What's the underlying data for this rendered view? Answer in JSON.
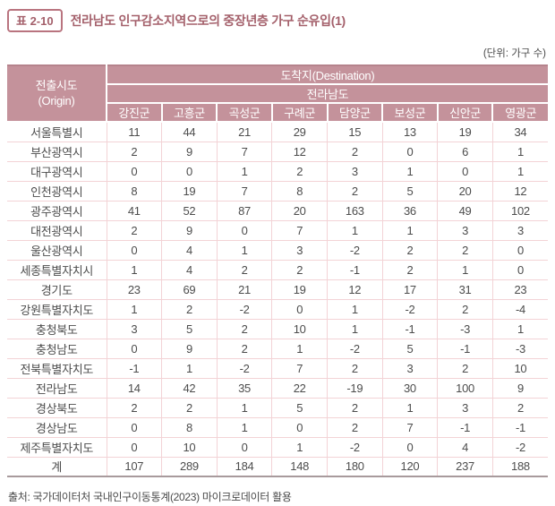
{
  "title": {
    "badge": "표 2-10",
    "text": "전라남도 인구감소지역으로의 중장년층 가구 순유입(1)"
  },
  "unit_label": "(단위: 가구 수)",
  "table": {
    "origin_header_line1": "전출시도",
    "origin_header_line2": "(Origin)",
    "destination_header": "도착지(Destination)",
    "region_header": "전라남도",
    "columns": [
      "강진군",
      "고흥군",
      "곡성군",
      "구례군",
      "담양군",
      "보성군",
      "신안군",
      "영광군"
    ],
    "rows": [
      {
        "origin": "서울특별시",
        "values": [
          11,
          44,
          21,
          29,
          15,
          13,
          19,
          34
        ]
      },
      {
        "origin": "부산광역시",
        "values": [
          2,
          9,
          7,
          12,
          2,
          0,
          6,
          1
        ]
      },
      {
        "origin": "대구광역시",
        "values": [
          0,
          0,
          1,
          2,
          3,
          1,
          0,
          1
        ]
      },
      {
        "origin": "인천광역시",
        "values": [
          8,
          19,
          7,
          8,
          2,
          5,
          20,
          12
        ]
      },
      {
        "origin": "광주광역시",
        "values": [
          41,
          52,
          87,
          20,
          163,
          36,
          49,
          102
        ]
      },
      {
        "origin": "대전광역시",
        "values": [
          2,
          9,
          0,
          7,
          1,
          1,
          3,
          3
        ]
      },
      {
        "origin": "울산광역시",
        "values": [
          0,
          4,
          1,
          3,
          -2,
          2,
          2,
          0
        ]
      },
      {
        "origin": "세종특별자치시",
        "values": [
          1,
          4,
          2,
          2,
          -1,
          2,
          1,
          0
        ]
      },
      {
        "origin": "경기도",
        "values": [
          23,
          69,
          21,
          19,
          12,
          17,
          31,
          23
        ]
      },
      {
        "origin": "강원특별자치도",
        "values": [
          1,
          2,
          -2,
          0,
          1,
          -2,
          2,
          -4
        ]
      },
      {
        "origin": "충청북도",
        "values": [
          3,
          5,
          2,
          10,
          1,
          -1,
          -3,
          1
        ]
      },
      {
        "origin": "충청남도",
        "values": [
          0,
          9,
          2,
          1,
          -2,
          5,
          -1,
          -3
        ]
      },
      {
        "origin": "전북특별자치도",
        "values": [
          -1,
          1,
          -2,
          7,
          2,
          3,
          2,
          10
        ]
      },
      {
        "origin": "전라남도",
        "values": [
          14,
          42,
          35,
          22,
          -19,
          30,
          100,
          9
        ]
      },
      {
        "origin": "경상북도",
        "values": [
          2,
          2,
          1,
          5,
          2,
          1,
          3,
          2
        ]
      },
      {
        "origin": "경상남도",
        "values": [
          0,
          8,
          1,
          0,
          2,
          7,
          -1,
          -1
        ]
      },
      {
        "origin": "제주특별자치도",
        "values": [
          0,
          10,
          0,
          1,
          -2,
          0,
          4,
          -2
        ]
      },
      {
        "origin": "계",
        "values": [
          107,
          289,
          184,
          148,
          180,
          120,
          237,
          188
        ],
        "total": true
      }
    ]
  },
  "source": "출처: 국가데이터처 국내인구이동통계(2023) 마이크로데이터 활용",
  "colors": {
    "header_bg": "#c4929b",
    "title_accent": "#a4606b",
    "border_light": "#f3d3d6",
    "body_text": "#4d4d4d"
  }
}
